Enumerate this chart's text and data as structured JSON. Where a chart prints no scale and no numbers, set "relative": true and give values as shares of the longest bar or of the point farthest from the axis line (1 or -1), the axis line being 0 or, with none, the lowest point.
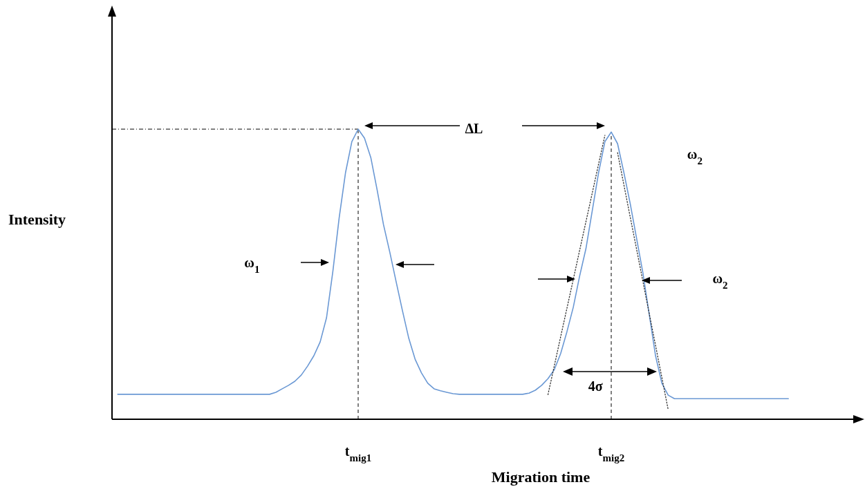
{
  "chart_data": {
    "type": "line",
    "relative": true,
    "xlabel": "Migration time",
    "ylabel": "Intensity",
    "categories": [
      null,
      null,
      null,
      null,
      null,
      null,
      null,
      null,
      null,
      null,
      null,
      null,
      null,
      null,
      null,
      null,
      null,
      null,
      null,
      null,
      null,
      null,
      null,
      null,
      null,
      null,
      null,
      null,
      null,
      null,
      null,
      null,
      null,
      null,
      null,
      null,
      null,
      null,
      "t$_{mig1}$",
      null,
      null,
      null,
      null,
      null,
      null,
      null,
      null,
      null,
      null,
      null,
      null,
      null,
      null,
      null,
      null,
      null,
      null,
      null,
      null,
      null,
      null,
      null,
      null,
      null,
      null,
      null,
      null,
      null,
      null,
      null,
      null,
      null,
      null,
      null,
      null,
      null,
      null,
      null,
      "t$_{mig2}$",
      null,
      null,
      null,
      null,
      null,
      null,
      null,
      null,
      null,
      null,
      null,
      null,
      null,
      null,
      null,
      null,
      null,
      null,
      null,
      null,
      null,
      null,
      null,
      null,
      null,
      null,
      null,
      null,
      null,
      null,
      null,
      null,
      null,
      null,
      null,
      null,
      null,
      null
    ],
    "series": [
      {
        "color": "#6a98d4",
        "values": [
          0.086,
          0.086,
          0.086,
          0.086,
          0.086,
          0.086,
          0.086,
          0.086,
          0.086,
          0.086,
          0.086,
          0.086,
          0.086,
          0.086,
          0.086,
          0.086,
          0.086,
          0.086,
          0.086,
          0.086,
          0.086,
          0.086,
          0.086,
          0.086,
          0.086,
          0.093,
          0.105,
          0.117,
          0.131,
          0.152,
          0.183,
          0.219,
          0.267,
          0.35,
          0.51,
          0.695,
          0.85,
          0.957,
          1,
          0.969,
          0.902,
          0.79,
          0.671,
          0.576,
          0.474,
          0.374,
          0.279,
          0.207,
          0.16,
          0.124,
          0.105,
          0.098,
          0.093,
          0.088,
          0.086,
          0.086,
          0.086,
          0.086,
          0.086,
          0.086,
          0.086,
          0.086,
          0.086,
          0.086,
          0.086,
          0.09,
          0.1,
          0.117,
          0.14,
          0.171,
          0.226,
          0.302,
          0.386,
          0.493,
          0.588,
          0.719,
          0.85,
          0.957,
          0.99,
          0.95,
          0.85,
          0.743,
          0.624,
          0.505,
          0.362,
          0.219,
          0.124,
          0.083,
          0.071,
          0.071,
          0.071,
          0.071,
          0.071,
          0.071,
          0.071,
          0.071,
          0.071,
          0.071,
          0.071,
          0.071,
          0.071,
          0.071,
          0.071,
          0.071,
          0.071,
          0.071,
          0.071,
          null,
          null,
          null,
          null,
          null,
          null,
          null,
          null,
          null,
          null
        ]
      },
      {
        "color": "#333333",
        "line_style": "dotted",
        "values": [
          null,
          null,
          null,
          null,
          null,
          null,
          null,
          null,
          null,
          null,
          null,
          null,
          null,
          null,
          null,
          null,
          null,
          null,
          null,
          null,
          null,
          null,
          null,
          null,
          null,
          null,
          null,
          null,
          null,
          null,
          null,
          null,
          null,
          null,
          null,
          null,
          null,
          null,
          null,
          null,
          null,
          null,
          null,
          null,
          null,
          null,
          null,
          null,
          null,
          null,
          null,
          null,
          null,
          null,
          null,
          null,
          null,
          null,
          null,
          null,
          null,
          null,
          null,
          null,
          null,
          null,
          null,
          null,
          0.085,
          0.184,
          0.284,
          0.383,
          0.482,
          0.582,
          0.681,
          0.78,
          0.88,
          0.979,
          null,
          null,
          null,
          null,
          null,
          null,
          null,
          null,
          null,
          null,
          null,
          null,
          null,
          null,
          null,
          null,
          null,
          null,
          null,
          null,
          null,
          null,
          null,
          null,
          null,
          null,
          null,
          null,
          null,
          null,
          null,
          null,
          null,
          null,
          null,
          null,
          null,
          null,
          null
        ]
      },
      {
        "color": "#333333",
        "line_style": "dotted",
        "values": [
          null,
          null,
          null,
          null,
          null,
          null,
          null,
          null,
          null,
          null,
          null,
          null,
          null,
          null,
          null,
          null,
          null,
          null,
          null,
          null,
          null,
          null,
          null,
          null,
          null,
          null,
          null,
          null,
          null,
          null,
          null,
          null,
          null,
          null,
          null,
          null,
          null,
          null,
          null,
          null,
          null,
          null,
          null,
          null,
          null,
          null,
          null,
          null,
          null,
          null,
          null,
          null,
          null,
          null,
          null,
          null,
          null,
          null,
          null,
          null,
          null,
          null,
          null,
          null,
          null,
          null,
          null,
          null,
          null,
          null,
          null,
          null,
          null,
          null,
          null,
          null,
          null,
          null,
          null,
          0.919,
          0.808,
          0.697,
          0.587,
          0.476,
          0.365,
          0.255,
          0.144,
          0.033,
          null,
          null,
          null,
          null,
          null,
          null,
          null,
          null,
          null,
          null,
          null,
          null,
          null,
          null,
          null,
          null,
          null,
          null,
          null,
          null,
          null,
          null,
          null,
          null,
          null,
          null,
          null,
          null,
          null
        ]
      }
    ],
    "ref_lines": [
      {
        "axis": "x",
        "value": "t$_{mig1}$",
        "line_style": "dashed",
        "color": "#000000"
      },
      {
        "axis": "x",
        "value": "t$_{mig2}$",
        "line_style": "dashed",
        "color": "#000000"
      },
      {
        "axis": "y",
        "value": 1,
        "line_style": "dashed",
        "color": "#000000"
      }
    ],
    "annotations": [
      "ΔL",
      "ω$_{1}$",
      "ω$_{2}$",
      "ω$_{2}$",
      "4σ"
    ]
  }
}
